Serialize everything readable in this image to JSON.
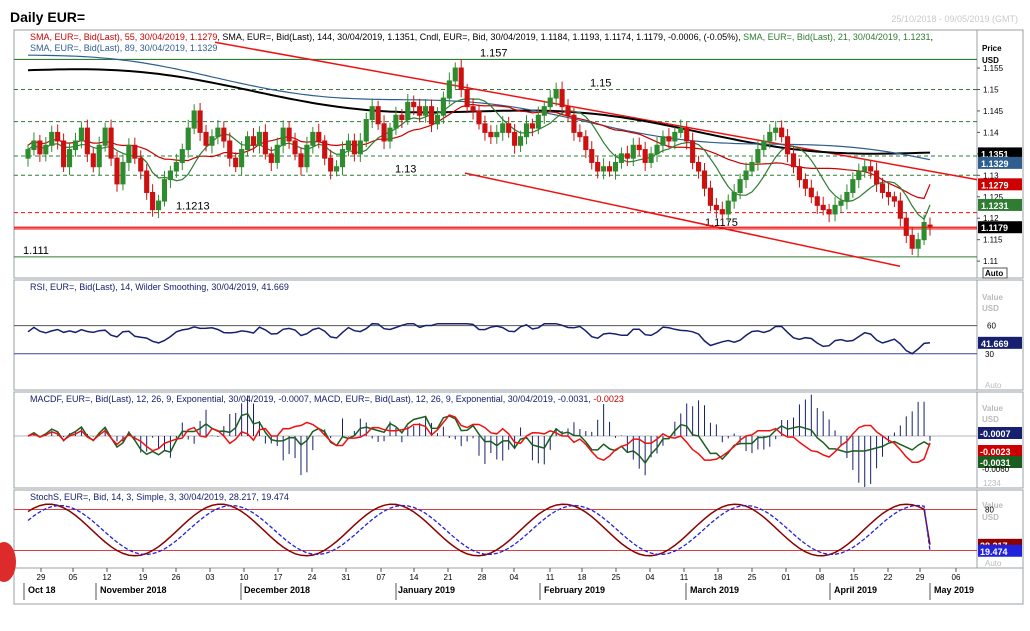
{
  "title": "Daily EUR=",
  "date_range": "25/10/2018 - 09/05/2019 (GMT)",
  "axis_header": [
    "Price",
    "USD"
  ],
  "price_legend": [
    {
      "text": "SMA, EUR=, Bid(Last), 55, 30/04/2019, 1.1279",
      "color": "#cc0000"
    },
    {
      "text": "SMA, EUR=, Bid(Last), 144, 30/04/2019, 1.1351",
      "color": "#000000"
    },
    {
      "text": "Cndl, EUR=, Bid, 30/04/2019, 1.1184, 1.1193, 1.1174, 1.1179, -0.0006, (-0.05%)",
      "color": "#000000"
    },
    {
      "text": "SMA, EUR=, Bid(Last), 21, 30/04/2019, 1.1231",
      "color": "#2e7d32"
    },
    {
      "text": "SMA, EUR=, Bid(Last), 89, 30/04/2019, 1.1329",
      "color": "#2f5f8f"
    }
  ],
  "rsi_legend": "RSI, EUR=, Bid(Last), 14, Wilder Smoothing, 30/04/2019, 41.669",
  "macd_legend": [
    {
      "text": "MACDF, EUR=, Bid(Last), 12, 26, 9, Exponential, 30/04/2019, -0.0007",
      "color": "#16206e"
    },
    {
      "text": "MACD, EUR=, Bid(Last), 12, 26, 9, Exponential, 30/04/2019, -0.0031",
      "color": "#16206e"
    },
    {
      "text": "-0.0023",
      "color": "#cc0000"
    }
  ],
  "stoch_legend": "StochS, EUR=, Bid, 14, 3, Simple, 3, 30/04/2019, 28.217, 19.474",
  "colors": {
    "up": "#2e8b2e",
    "down": "#cc1111",
    "sma144": "#000000",
    "sma89": "#2f5f8f",
    "sma55": "#cc0000",
    "sma21": "#2e7d32",
    "channel": "#ee1111",
    "navy": "#16206e"
  },
  "price_axis": {
    "ticks": [
      "1.155",
      "1.15",
      "1.145",
      "1.14",
      "1.135",
      "1.13",
      "1.125",
      "1.12",
      "1.115",
      "1.11"
    ],
    "labels": [
      {
        "text": "1.1351",
        "bg": "#000000",
        "fg": "#ffffff"
      },
      {
        "text": "1.1329",
        "bg": "#2f5f8f",
        "fg": "#ffffff"
      },
      {
        "text": "1.1279",
        "bg": "#cc0000",
        "fg": "#ffffff"
      },
      {
        "text": "1.1231",
        "bg": "#2e7d32",
        "fg": "#ffffff"
      },
      {
        "text": "1.1179",
        "bg": "#000000",
        "fg": "#ffffff"
      }
    ],
    "auto": "Auto"
  },
  "level_labels": [
    "1.157",
    "1.15",
    "1.13",
    "1.1213",
    "1.1175",
    "1.111"
  ],
  "rsi_axis": {
    "header": [
      "Value",
      "USD"
    ],
    "ticks": [
      "60",
      "30"
    ],
    "label": "41.669",
    "auto": "Auto"
  },
  "macd_axis": {
    "header": [
      "Value",
      "USD"
    ],
    "ticks": [
      "-0.0060"
    ],
    "labels": [
      "-0.0007",
      "-0.0023",
      "-0.0031"
    ],
    "extra": "1234",
    "auto": "Auto"
  },
  "stoch_axis": {
    "header": [
      "Value",
      "USD"
    ],
    "ticks": [
      "80"
    ],
    "labels": [
      "28.217",
      "19.474"
    ],
    "auto": "Auto"
  },
  "x_days": [
    "29",
    "05",
    "12",
    "19",
    "26",
    "03",
    "10",
    "17",
    "24",
    "31",
    "07",
    "14",
    "21",
    "28",
    "04",
    "11",
    "18",
    "25",
    "04",
    "11",
    "18",
    "25",
    "01",
    "08",
    "15",
    "22",
    "29",
    "06"
  ],
  "x_months": [
    "Oct 18",
    "November 2018",
    "December 2018",
    "January 2019",
    "February 2019",
    "March 2019",
    "April 2019",
    "May 2019"
  ],
  "chart_data": {
    "type": "candlestick",
    "instrument": "EUR=",
    "period": "Daily",
    "ylim": [
      1.107,
      1.162
    ],
    "last_close": 1.1179,
    "last_ohlc": {
      "open": 1.1184,
      "high": 1.1193,
      "low": 1.1174,
      "close": 1.1179
    },
    "change": -0.0006,
    "change_pct": "-0.05%",
    "sma": {
      "sma21": 1.1231,
      "sma55": 1.1279,
      "sma89": 1.1329,
      "sma144": 1.1351
    },
    "horizontal_levels": [
      1.157,
      1.15,
      1.13,
      1.1213,
      1.1175,
      1.111
    ],
    "close_path": [
      1.136,
      1.138,
      1.135,
      1.137,
      1.14,
      1.138,
      1.132,
      1.136,
      1.138,
      1.141,
      1.135,
      1.132,
      1.137,
      1.141,
      1.134,
      1.128,
      1.133,
      1.137,
      1.134,
      1.131,
      1.126,
      1.122,
      1.124,
      1.129,
      1.131,
      1.133,
      1.136,
      1.141,
      1.145,
      1.14,
      1.137,
      1.139,
      1.141,
      1.138,
      1.134,
      1.132,
      1.136,
      1.139,
      1.137,
      1.14,
      1.135,
      1.133,
      1.137,
      1.141,
      1.138,
      1.135,
      1.132,
      1.137,
      1.14,
      1.138,
      1.134,
      1.131,
      1.132,
      1.136,
      1.138,
      1.135,
      1.138,
      1.143,
      1.146,
      1.142,
      1.138,
      1.141,
      1.144,
      1.143,
      1.147,
      1.146,
      1.144,
      1.146,
      1.142,
      1.144,
      1.148,
      1.152,
      1.155,
      1.15,
      1.146,
      1.145,
      1.142,
      1.14,
      1.139,
      1.14,
      1.142,
      1.14,
      1.137,
      1.139,
      1.142,
      1.141,
      1.144,
      1.146,
      1.148,
      1.15,
      1.146,
      1.144,
      1.14,
      1.139,
      1.136,
      1.133,
      1.131,
      1.132,
      1.131,
      1.133,
      1.135,
      1.134,
      1.137,
      1.136,
      1.133,
      1.135,
      1.137,
      1.139,
      1.138,
      1.14,
      1.141,
      1.138,
      1.133,
      1.131,
      1.127,
      1.123,
      1.122,
      1.121,
      1.124,
      1.126,
      1.129,
      1.131,
      1.133,
      1.136,
      1.138,
      1.14,
      1.141,
      1.139,
      1.135,
      1.132,
      1.129,
      1.127,
      1.125,
      1.123,
      1.122,
      1.121,
      1.123,
      1.124,
      1.126,
      1.129,
      1.131,
      1.132,
      1.131,
      1.128,
      1.126,
      1.125,
      1.124,
      1.12,
      1.116,
      1.113,
      1.115,
      1.119,
      1.1179
    ]
  },
  "rsi_data": {
    "type": "line",
    "levels": [
      60,
      30
    ],
    "last": 41.669
  },
  "macd_data": {
    "type": "line+histogram",
    "macd": -0.0031,
    "signal": -0.0023,
    "hist": -0.0007
  },
  "stoch_data": {
    "type": "line",
    "levels": [
      80,
      20
    ],
    "k": 28.217,
    "d": 19.474
  }
}
